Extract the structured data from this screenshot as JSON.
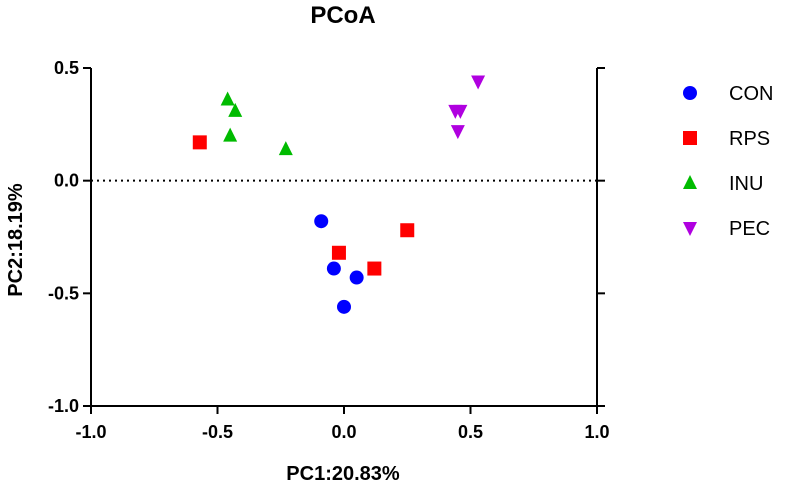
{
  "chart_data": {
    "type": "scatter",
    "title": "PCoA",
    "xlabel": "PC1:20.83%",
    "ylabel": "PC2:18.19%",
    "xlim": [
      -1.0,
      1.0
    ],
    "ylim": [
      -1.0,
      0.5
    ],
    "xticks": [
      "-1.0",
      "-0.5",
      "0.0",
      "0.5",
      "1.0"
    ],
    "yticks": [
      "0.5",
      "0.0",
      "-0.5",
      "-1.0"
    ],
    "reference_line": {
      "y": 0.0,
      "style": "dotted"
    },
    "legend_position": "right",
    "grid": false,
    "series": [
      {
        "name": "CON",
        "marker": "circle",
        "color": "#0000ff",
        "points": [
          [
            -0.09,
            -0.18
          ],
          [
            -0.04,
            -0.39
          ],
          [
            0.05,
            -0.43
          ],
          [
            0.0,
            -0.56
          ]
        ]
      },
      {
        "name": "RPS",
        "marker": "square",
        "color": "#ff0000",
        "points": [
          [
            -0.57,
            0.17
          ],
          [
            -0.02,
            -0.32
          ],
          [
            0.12,
            -0.39
          ],
          [
            0.25,
            -0.22
          ]
        ]
      },
      {
        "name": "INU",
        "marker": "triangle-up",
        "color": "#00bb00",
        "points": [
          [
            -0.46,
            0.36
          ],
          [
            -0.43,
            0.31
          ],
          [
            -0.45,
            0.2
          ],
          [
            -0.23,
            0.14
          ]
        ]
      },
      {
        "name": "PEC",
        "marker": "triangle-down",
        "color": "#b000e0",
        "points": [
          [
            0.44,
            0.31
          ],
          [
            0.45,
            0.22
          ],
          [
            0.53,
            0.44
          ],
          [
            0.46,
            0.31
          ]
        ]
      }
    ]
  }
}
